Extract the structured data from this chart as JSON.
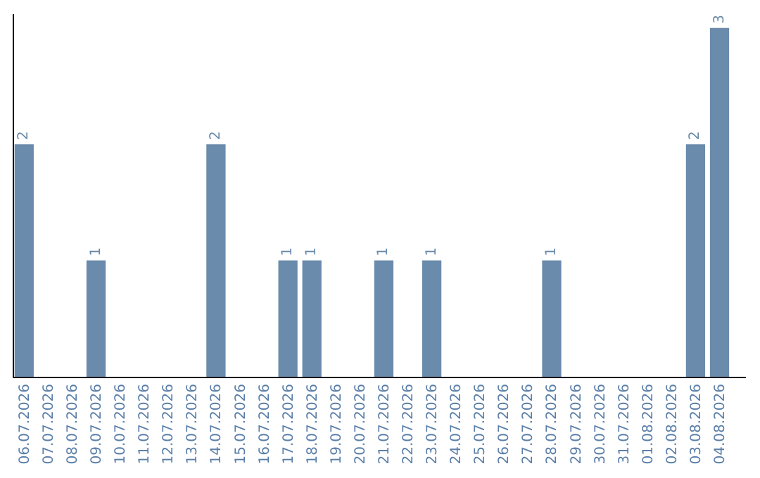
{
  "chart_data": {
    "type": "bar",
    "categories": [
      "06.07.2026",
      "07.07.2026",
      "08.07.2026",
      "09.07.2026",
      "10.07.2026",
      "11.07.2026",
      "12.07.2026",
      "13.07.2026",
      "14.07.2026",
      "15.07.2026",
      "16.07.2026",
      "17.07.2026",
      "18.07.2026",
      "19.07.2026",
      "20.07.2026",
      "21.07.2026",
      "22.07.2026",
      "23.07.2026",
      "24.07.2026",
      "25.07.2026",
      "26.07.2026",
      "27.07.2026",
      "28.07.2026",
      "29.07.2026",
      "30.07.2026",
      "31.07.2026",
      "01.08.2026",
      "02.08.2026",
      "03.08.2026",
      "04.08.2026"
    ],
    "values": [
      2,
      0,
      0,
      1,
      0,
      0,
      0,
      0,
      2,
      0,
      0,
      1,
      1,
      0,
      0,
      1,
      0,
      1,
      0,
      0,
      0,
      0,
      1,
      0,
      0,
      0,
      0,
      0,
      2,
      3
    ],
    "value_labels": [
      "2",
      null,
      null,
      "1",
      null,
      null,
      null,
      null,
      "2",
      null,
      null,
      "1",
      "1",
      null,
      null,
      "1",
      null,
      "1",
      null,
      null,
      null,
      null,
      "1",
      null,
      null,
      null,
      null,
      null,
      "2",
      "3"
    ],
    "color": "#6a8bab",
    "legend": false,
    "tick_labels": "x"
  }
}
